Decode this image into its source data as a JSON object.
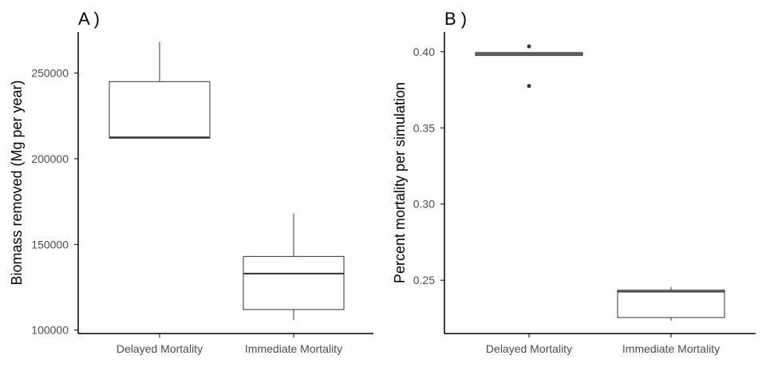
{
  "chart_data": [
    {
      "type": "box",
      "panel_label": "A )",
      "title": "",
      "xlabel": "",
      "ylabel": "Biomass removed (Mg per year)",
      "categories": [
        "Delayed Mortality",
        "Immediate Mortality"
      ],
      "ylim": [
        98000,
        274000
      ],
      "yticks": [
        100000,
        150000,
        200000,
        250000
      ],
      "ytick_labels": [
        "100000",
        "150000",
        "200000",
        "250000"
      ],
      "boxes": [
        {
          "category": "Delayed Mortality",
          "whisker_low": 212000,
          "q1": 212000,
          "median": 212500,
          "q3": 245000,
          "whisker_high": 268000,
          "outliers": []
        },
        {
          "category": "Immediate Mortality",
          "whisker_low": 106000,
          "q1": 112000,
          "median": 133000,
          "q3": 143000,
          "whisker_high": 168000,
          "outliers": []
        }
      ],
      "grid": false
    },
    {
      "type": "box",
      "panel_label": "B )",
      "title": "",
      "xlabel": "",
      "ylabel": "Percent mortality per simulation",
      "categories": [
        "Delayed Mortality",
        "Immediate Mortality"
      ],
      "ylim": [
        0.215,
        0.413
      ],
      "yticks": [
        0.25,
        0.3,
        0.35,
        0.4
      ],
      "ytick_labels": [
        "0.25",
        "0.30",
        "0.35",
        "0.40"
      ],
      "boxes": [
        {
          "category": "Delayed Mortality",
          "whisker_low": 0.3975,
          "q1": 0.3975,
          "median": 0.3985,
          "q3": 0.3995,
          "whisker_high": 0.3995,
          "outliers": [
            0.4035,
            0.3775
          ]
        },
        {
          "category": "Immediate Mortality",
          "whisker_low": 0.2235,
          "q1": 0.2255,
          "median": 0.2425,
          "q3": 0.2435,
          "whisker_high": 0.2455,
          "outliers": []
        }
      ],
      "grid": false
    }
  ],
  "colors": {
    "box_fill": "#ffffff",
    "stroke": "#333333",
    "axis": "#000000",
    "tick_text": "#4d4d4d"
  }
}
